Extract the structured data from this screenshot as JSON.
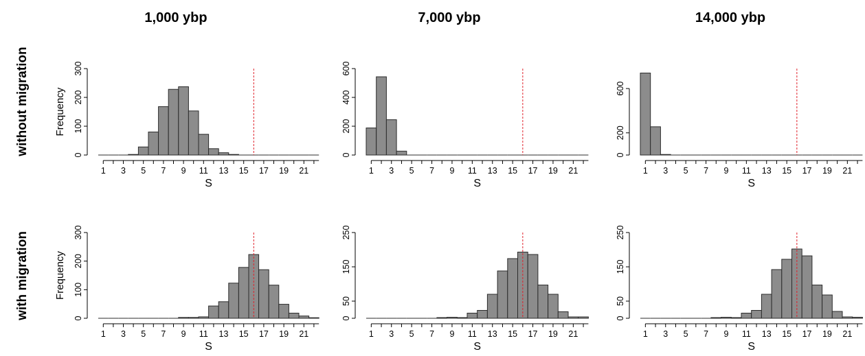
{
  "figure": {
    "column_titles": [
      "1,000 ybp",
      "7,000 ybp",
      "14,000 ybp"
    ],
    "row_titles": [
      "without migration",
      "with migration"
    ]
  },
  "chart_data": [
    {
      "type": "bar",
      "title": "1,000 ybp",
      "row": "without migration",
      "xlabel": "S",
      "ylabel": "Frequency",
      "categories": [
        1,
        2,
        3,
        4,
        5,
        6,
        7,
        8,
        9,
        10,
        11,
        12,
        13,
        14,
        15,
        16,
        17,
        18,
        19,
        20,
        21,
        22
      ],
      "values": [
        0,
        0,
        0,
        2,
        28,
        80,
        168,
        228,
        237,
        153,
        72,
        22,
        8,
        2,
        0,
        0,
        0,
        0,
        0,
        0,
        0,
        0
      ],
      "ylim": [
        0,
        300
      ],
      "yticks": [
        0,
        100,
        200,
        300
      ],
      "xticks": [
        1,
        3,
        5,
        7,
        9,
        11,
        13,
        15,
        17,
        19,
        21
      ],
      "reference_line": 16
    },
    {
      "type": "bar",
      "title": "7,000 ybp",
      "row": "without migration",
      "xlabel": "S",
      "ylabel": "",
      "categories": [
        1,
        2,
        3,
        4,
        5,
        6,
        7,
        8,
        9,
        10,
        11,
        12,
        13,
        14,
        15,
        16,
        17,
        18,
        19,
        20,
        21,
        22
      ],
      "values": [
        188,
        543,
        245,
        27,
        0,
        0,
        0,
        0,
        0,
        0,
        0,
        0,
        0,
        0,
        0,
        0,
        0,
        0,
        0,
        0,
        0,
        0
      ],
      "ylim": [
        0,
        600
      ],
      "yticks": [
        0,
        200,
        400,
        600
      ],
      "xticks": [
        1,
        3,
        5,
        7,
        9,
        11,
        13,
        15,
        17,
        19,
        21
      ],
      "reference_line": 16
    },
    {
      "type": "bar",
      "title": "14,000 ybp",
      "row": "without migration",
      "xlabel": "S",
      "ylabel": "",
      "categories": [
        1,
        2,
        3,
        4,
        5,
        6,
        7,
        8,
        9,
        10,
        11,
        12,
        13,
        14,
        15,
        16,
        17,
        18,
        19,
        20,
        21,
        22
      ],
      "values": [
        740,
        255,
        5,
        0,
        0,
        0,
        0,
        0,
        0,
        0,
        0,
        0,
        0,
        0,
        0,
        0,
        0,
        0,
        0,
        0,
        0,
        0
      ],
      "ylim": [
        0,
        780
      ],
      "yticks": [
        0,
        200,
        600
      ],
      "xticks": [
        1,
        3,
        5,
        7,
        9,
        11,
        13,
        15,
        17,
        19,
        21
      ],
      "reference_line": 16
    },
    {
      "type": "bar",
      "title": "1,000 ybp",
      "row": "with migration",
      "xlabel": "S",
      "ylabel": "Frequency",
      "categories": [
        1,
        2,
        3,
        4,
        5,
        6,
        7,
        8,
        9,
        10,
        11,
        12,
        13,
        14,
        15,
        16,
        17,
        18,
        19,
        20,
        21,
        22
      ],
      "values": [
        0,
        0,
        0,
        0,
        0,
        0,
        0,
        0,
        3,
        3,
        5,
        43,
        58,
        123,
        178,
        223,
        170,
        116,
        49,
        18,
        8,
        2
      ],
      "ylim": [
        0,
        300
      ],
      "yticks": [
        0,
        100,
        200,
        300
      ],
      "xticks": [
        1,
        3,
        5,
        7,
        9,
        11,
        13,
        15,
        17,
        19,
        21
      ],
      "reference_line": 16
    },
    {
      "type": "bar",
      "title": "7,000 ybp",
      "row": "with migration",
      "xlabel": "S",
      "ylabel": "",
      "categories": [
        1,
        2,
        3,
        4,
        5,
        6,
        7,
        8,
        9,
        10,
        11,
        12,
        13,
        14,
        15,
        16,
        17,
        18,
        19,
        20,
        21,
        22
      ],
      "values": [
        0,
        0,
        0,
        0,
        0,
        0,
        0,
        2,
        3,
        2,
        15,
        23,
        70,
        138,
        174,
        193,
        186,
        97,
        70,
        19,
        4,
        4
      ],
      "ylim": [
        0,
        250
      ],
      "yticks": [
        0,
        50,
        150,
        250
      ],
      "xticks": [
        1,
        3,
        5,
        7,
        9,
        11,
        13,
        15,
        17,
        19,
        21
      ],
      "reference_line": 16
    },
    {
      "type": "bar",
      "title": "14,000 ybp",
      "row": "with migration",
      "xlabel": "S",
      "ylabel": "",
      "categories": [
        1,
        2,
        3,
        4,
        5,
        6,
        7,
        8,
        9,
        10,
        11,
        12,
        13,
        14,
        15,
        16,
        17,
        18,
        19,
        20,
        21,
        22
      ],
      "values": [
        0,
        0,
        0,
        0,
        0,
        0,
        0,
        2,
        3,
        2,
        15,
        23,
        70,
        142,
        172,
        202,
        182,
        97,
        68,
        20,
        4,
        3
      ],
      "ylim": [
        0,
        250
      ],
      "yticks": [
        0,
        50,
        150,
        250
      ],
      "xticks": [
        1,
        3,
        5,
        7,
        9,
        11,
        13,
        15,
        17,
        19,
        21
      ],
      "reference_line": 16
    }
  ],
  "colors": {
    "bar_fill": "#8c8c8c",
    "bar_stroke": "#2b2b2b",
    "reference_line": "#e0202a",
    "axis": "#000000"
  }
}
